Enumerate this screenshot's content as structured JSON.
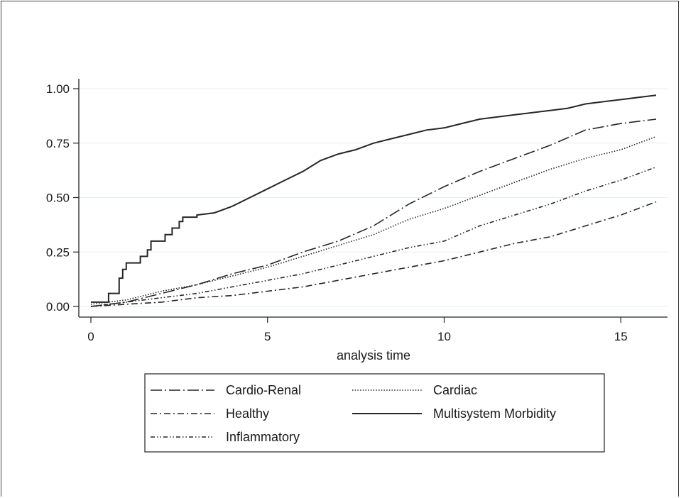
{
  "chart_data": {
    "type": "line",
    "title": "",
    "xlabel": "analysis time",
    "ylabel": "",
    "xlim": [
      0,
      16
    ],
    "ylim": [
      0,
      1
    ],
    "x_ticks": [
      0,
      5,
      10,
      15
    ],
    "x_tick_labels": [
      "0",
      "5",
      "10",
      "15"
    ],
    "y_ticks": [
      0,
      0.25,
      0.5,
      0.75,
      1
    ],
    "y_tick_labels": [
      "0.00",
      "0.25",
      "0.50",
      "0.75",
      "1.00"
    ],
    "grid": "horizontal",
    "legend_position": "bottom",
    "series": [
      {
        "name": "Cardio-Renal",
        "dash": "longdashdot",
        "step": false,
        "points": [
          [
            0,
            0
          ],
          [
            1,
            0.02
          ],
          [
            2,
            0.06
          ],
          [
            3,
            0.1
          ],
          [
            4,
            0.15
          ],
          [
            5,
            0.19
          ],
          [
            6,
            0.25
          ],
          [
            7,
            0.3
          ],
          [
            8,
            0.37
          ],
          [
            9,
            0.47
          ],
          [
            10,
            0.55
          ],
          [
            11,
            0.62
          ],
          [
            12,
            0.68
          ],
          [
            13,
            0.74
          ],
          [
            14,
            0.81
          ],
          [
            15,
            0.84
          ],
          [
            16,
            0.86
          ]
        ]
      },
      {
        "name": "Cardiac",
        "dash": "dot",
        "step": false,
        "points": [
          [
            0,
            0.01
          ],
          [
            1,
            0.03
          ],
          [
            2,
            0.07
          ],
          [
            3,
            0.1
          ],
          [
            4,
            0.14
          ],
          [
            5,
            0.18
          ],
          [
            6,
            0.23
          ],
          [
            7,
            0.28
          ],
          [
            8,
            0.33
          ],
          [
            9,
            0.4
          ],
          [
            10,
            0.45
          ],
          [
            11,
            0.51
          ],
          [
            12,
            0.57
          ],
          [
            13,
            0.63
          ],
          [
            14,
            0.68
          ],
          [
            15,
            0.72
          ],
          [
            16,
            0.78
          ]
        ]
      },
      {
        "name": "Healthy",
        "dash": "dashdot",
        "step": false,
        "points": [
          [
            0,
            0
          ],
          [
            1,
            0.01
          ],
          [
            2,
            0.02
          ],
          [
            3,
            0.04
          ],
          [
            4,
            0.05
          ],
          [
            5,
            0.07
          ],
          [
            6,
            0.09
          ],
          [
            7,
            0.12
          ],
          [
            8,
            0.15
          ],
          [
            9,
            0.18
          ],
          [
            10,
            0.21
          ],
          [
            11,
            0.25
          ],
          [
            12,
            0.29
          ],
          [
            13,
            0.32
          ],
          [
            14,
            0.37
          ],
          [
            15,
            0.42
          ],
          [
            16,
            0.48
          ]
        ]
      },
      {
        "name": "Multisystem Morbidity",
        "dash": "solid",
        "step": true,
        "points": [
          [
            0,
            0.02
          ],
          [
            0.5,
            0.02
          ],
          [
            0.5,
            0.06
          ],
          [
            0.8,
            0.06
          ],
          [
            0.8,
            0.13
          ],
          [
            0.9,
            0.13
          ],
          [
            0.9,
            0.17
          ],
          [
            1,
            0.17
          ],
          [
            1,
            0.2
          ],
          [
            1.4,
            0.2
          ],
          [
            1.4,
            0.23
          ],
          [
            1.6,
            0.23
          ],
          [
            1.6,
            0.26
          ],
          [
            1.7,
            0.26
          ],
          [
            1.7,
            0.3
          ],
          [
            2.1,
            0.3
          ],
          [
            2.1,
            0.33
          ],
          [
            2.3,
            0.33
          ],
          [
            2.3,
            0.36
          ],
          [
            2.5,
            0.36
          ],
          [
            2.5,
            0.39
          ],
          [
            2.6,
            0.39
          ],
          [
            2.6,
            0.41
          ],
          [
            3,
            0.41
          ],
          [
            3,
            0.42
          ],
          [
            3.5,
            0.43
          ],
          [
            4,
            0.46
          ],
          [
            4.5,
            0.5
          ],
          [
            5,
            0.54
          ],
          [
            5.5,
            0.58
          ],
          [
            6,
            0.62
          ],
          [
            6.5,
            0.67
          ],
          [
            7,
            0.7
          ],
          [
            7.5,
            0.72
          ],
          [
            8,
            0.75
          ],
          [
            8.5,
            0.77
          ],
          [
            9,
            0.79
          ],
          [
            9.5,
            0.81
          ],
          [
            10,
            0.82
          ],
          [
            10.5,
            0.84
          ],
          [
            11,
            0.86
          ],
          [
            11.5,
            0.87
          ],
          [
            12,
            0.88
          ],
          [
            12.5,
            0.89
          ],
          [
            13,
            0.9
          ],
          [
            13.5,
            0.91
          ],
          [
            14,
            0.93
          ],
          [
            14.5,
            0.94
          ],
          [
            15,
            0.95
          ],
          [
            15.5,
            0.96
          ],
          [
            16,
            0.97
          ]
        ]
      },
      {
        "name": "Inflammatory",
        "dash": "dashdotdot",
        "step": false,
        "points": [
          [
            0,
            0
          ],
          [
            1,
            0.02
          ],
          [
            2,
            0.04
          ],
          [
            3,
            0.06
          ],
          [
            4,
            0.09
          ],
          [
            5,
            0.12
          ],
          [
            6,
            0.15
          ],
          [
            7,
            0.19
          ],
          [
            8,
            0.23
          ],
          [
            9,
            0.27
          ],
          [
            10,
            0.3
          ],
          [
            11,
            0.37
          ],
          [
            12,
            0.42
          ],
          [
            13,
            0.47
          ],
          [
            14,
            0.53
          ],
          [
            15,
            0.58
          ],
          [
            16,
            0.64
          ]
        ]
      }
    ]
  }
}
